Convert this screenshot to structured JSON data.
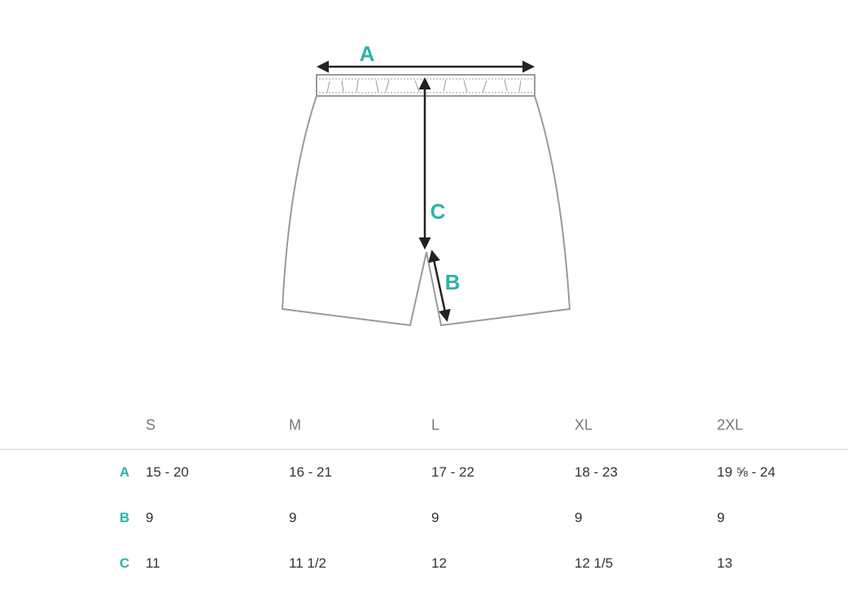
{
  "diagram": {
    "labels": [
      "A",
      "C",
      "B"
    ]
  },
  "table": {
    "columns": [
      "S",
      "M",
      "L",
      "XL",
      "2XL"
    ],
    "rows": [
      {
        "label": "A",
        "cells": [
          "15 - 20",
          "16 - 21",
          "17 - 22",
          "18 - 23",
          "19 ⅝ - 24"
        ]
      },
      {
        "label": "B",
        "cells": [
          "9",
          "9",
          "9",
          "9",
          "9"
        ]
      },
      {
        "label": "C",
        "cells": [
          "11",
          "11 1/2",
          "12",
          "12 1/5",
          "13"
        ]
      }
    ]
  }
}
